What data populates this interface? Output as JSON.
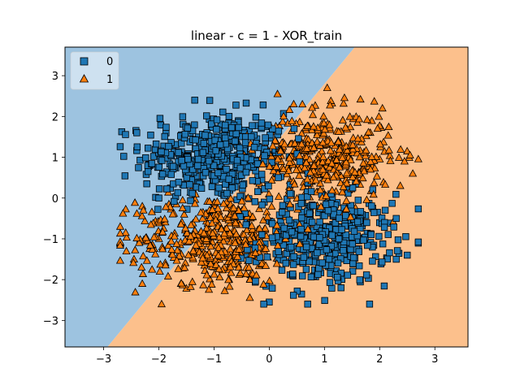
{
  "chart_data": {
    "type": "scatter",
    "title": "linear - c = 1 - XOR_train",
    "xlabel": "",
    "ylabel": "",
    "xlim": [
      -3.7,
      3.6
    ],
    "ylim": [
      -3.65,
      3.7
    ],
    "x_ticks": [
      -3,
      -2,
      -1,
      0,
      1,
      2,
      3
    ],
    "y_ticks": [
      -3,
      -2,
      -1,
      0,
      1,
      2,
      3
    ],
    "x_tick_labels": [
      "−3",
      "−2",
      "−1",
      "0",
      "1",
      "2",
      "3"
    ],
    "y_tick_labels": [
      "−3",
      "−2",
      "−1",
      "0",
      "1",
      "2",
      "3"
    ],
    "grid": false,
    "legend_position": "top-left",
    "decision_boundary": {
      "description": "linear",
      "points": [
        [
          -2.93,
          -3.65
        ],
        [
          1.55,
          3.7
        ]
      ]
    },
    "regions": [
      {
        "class": "0",
        "color": "#9dc3e0",
        "side": "upper-left"
      },
      {
        "class": "1",
        "color": "#fcc08c",
        "side": "lower-right"
      }
    ],
    "series": [
      {
        "name": "0",
        "marker": "square",
        "color": "#1f77b4",
        "clusters": [
          {
            "center": [
              -1.0,
              1.0
            ],
            "spread": [
              0.65,
              0.55
            ],
            "count": 420
          },
          {
            "center": [
              1.0,
              -1.0
            ],
            "spread": [
              0.6,
              0.55
            ],
            "count": 420
          }
        ],
        "extra_points": [
          [
            -2.4,
            1.6
          ],
          [
            -1.35,
            2.4
          ],
          [
            0.45,
            1.7
          ],
          [
            0.15,
            1.55
          ],
          [
            0.4,
            0.1
          ],
          [
            0.5,
            -0.6
          ],
          [
            0.3,
            -1.6
          ],
          [
            -0.1,
            -2.6
          ],
          [
            0.0,
            -2.55
          ],
          [
            1.3,
            -2.2
          ],
          [
            2.3,
            -1.5
          ],
          [
            2.5,
            -1.4
          ],
          [
            2.3,
            -0.5
          ],
          [
            2.1,
            -0.3
          ],
          [
            -2.2,
            0.8
          ],
          [
            -2.0,
            0.0
          ]
        ]
      },
      {
        "name": "1",
        "marker": "triangle",
        "color": "#ff7f0e",
        "clusters": [
          {
            "center": [
              -1.0,
              -1.0
            ],
            "spread": [
              0.7,
              0.55
            ],
            "count": 420
          },
          {
            "center": [
              1.0,
              1.0
            ],
            "spread": [
              0.6,
              0.55
            ],
            "count": 420
          }
        ],
        "extra_points": [
          [
            -2.7,
            -0.7
          ],
          [
            -2.6,
            -0.85
          ],
          [
            -2.3,
            -2.1
          ],
          [
            -1.95,
            -2.6
          ],
          [
            -1.6,
            -2.1
          ],
          [
            -0.35,
            -2.0
          ],
          [
            -0.3,
            -1.85
          ],
          [
            0.15,
            2.55
          ],
          [
            1.05,
            2.7
          ],
          [
            2.05,
            2.2
          ],
          [
            2.55,
            1.05
          ],
          [
            2.6,
            0.6
          ],
          [
            2.45,
            0.9
          ],
          [
            -2.3,
            -0.2
          ],
          [
            -2.45,
            -1.5
          ],
          [
            0.6,
            2.3
          ]
        ]
      }
    ]
  }
}
